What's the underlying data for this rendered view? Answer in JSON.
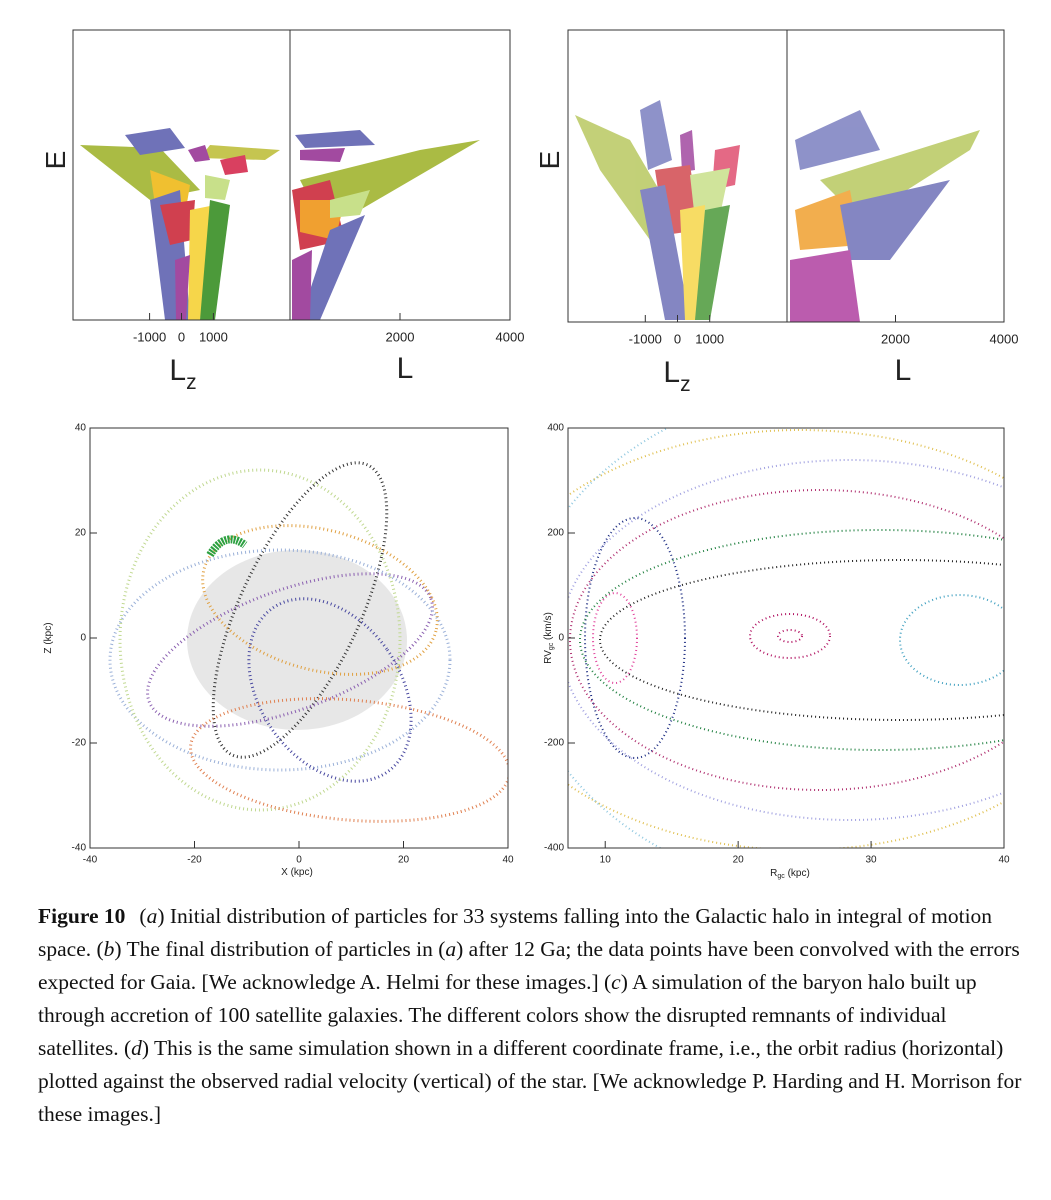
{
  "chart_data": [
    {
      "type": "scatter",
      "xlim": [
        -3400,
        3400
      ],
      "xticks": [
        -1000,
        0,
        1000
      ],
      "x_label": "L",
      "x_label_sub": "z",
      "y_label": "E"
    },
    {
      "type": "scatter",
      "xlim": [
        0,
        4000
      ],
      "xticks": [
        2000,
        4000
      ],
      "x_label": "L"
    },
    {
      "type": "scatter",
      "xlim": [
        -3400,
        3400
      ],
      "xticks": [
        -1000,
        0,
        1000
      ],
      "x_label": "L",
      "x_label_sub": "z",
      "y_label": "E"
    },
    {
      "type": "scatter",
      "xlim": [
        0,
        4000
      ],
      "xticks": [
        2000,
        4000
      ],
      "x_label": "L"
    },
    {
      "type": "scatter",
      "xlim": [
        -40,
        40
      ],
      "xticks": [
        -40,
        -20,
        0,
        20,
        40
      ],
      "ylim": [
        -40,
        40
      ],
      "yticks": [
        -40,
        -20,
        0,
        20,
        40
      ],
      "x_label": "X (kpc)",
      "y_label": "Z (kpc)"
    },
    {
      "type": "scatter",
      "xlim": [
        7.2,
        40
      ],
      "xticks": [
        10,
        20,
        30,
        40
      ],
      "ylim": [
        -400,
        400
      ],
      "yticks": [
        -400,
        -200,
        0,
        200,
        400
      ],
      "x_label": "R",
      "x_label_sub": "gc",
      "x_label_unit": " (kpc)",
      "y_label": "RV",
      "y_label_sub": "gc",
      "y_label_unit": " (km/s)"
    }
  ],
  "caption": {
    "label": "Figure 10",
    "parts": [
      "(",
      "a",
      ") Initial distribution of particles for 33 systems falling into the Galactic halo in integral of motion space. (",
      "b",
      ") The final distribution of particles in (",
      "a",
      ") after 12 Ga; the data points have been convolved with the errors expected for Gaia. [We acknowledge A. Helmi for these images.] (",
      "c",
      ") A simulation of the baryon halo built up through accretion of 100 satellite galaxies. The different colors show the disrupted remnants of individual satellites. (",
      "d",
      ") This is the same simulation shown in a different coordinate frame, i.e., the orbit radius (horizontal) plotted against the observed radial velocity (vertical) of the star. [We acknowledge P. Harding and H. Morrison for these images.]"
    ]
  }
}
